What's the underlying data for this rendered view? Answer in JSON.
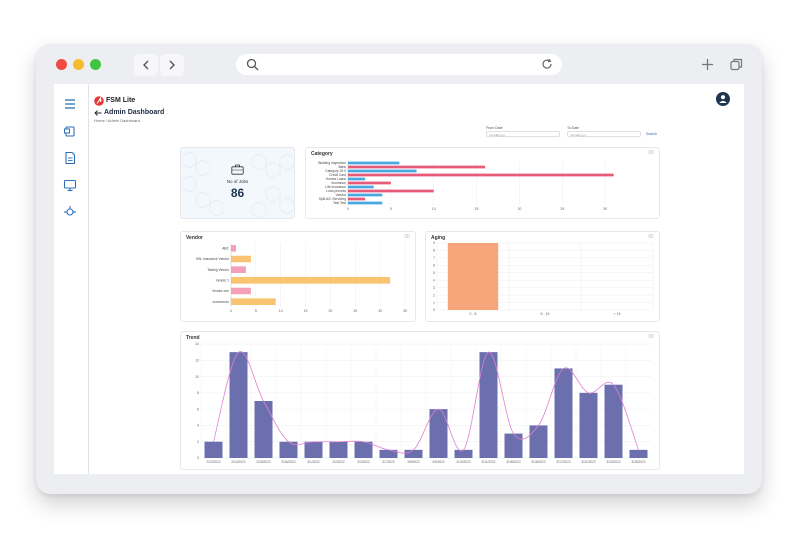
{
  "app": {
    "logo_text": "FSM Lite",
    "page_title": "Admin Dashboard",
    "breadcrumb_home": "Home",
    "breadcrumb_sep": " / ",
    "breadcrumb_current": "Admin Dashboard"
  },
  "filters": {
    "from_label": "From Date",
    "from_placeholder": "mm/dd/yyyy",
    "to_label": "To Date",
    "to_placeholder": "mm/dd/yyyy",
    "search_label": "Search"
  },
  "jobs": {
    "label": "No of Jobs",
    "value": "86"
  },
  "colors": {
    "blue": "#4aa8e0",
    "pink": "#e85a7a",
    "orange": "#f7a57a",
    "yellow": "#f8c471",
    "lightpink": "#f4a0b8",
    "purple": "#6b6fae",
    "trendline": "#e080d0",
    "accent": "#e53935",
    "sidebar_icon": "#2d6fb8"
  },
  "category_chart": {
    "title": "Category",
    "chart_data": {
      "type": "bar",
      "orientation": "horizontal",
      "categories": [
        "Building Inspection",
        "Bank",
        "Category 20.0",
        "Credit Card",
        "Homes Loans",
        "Insurance",
        "Life Insurance",
        "Loan process",
        "Vendor",
        "Split A/C Servicing",
        "Test Test"
      ],
      "series": [
        {
          "values": [
            6,
            0,
            8,
            0,
            2,
            0,
            3,
            0,
            4,
            0,
            4
          ]
        },
        {
          "values": [
            0,
            16,
            0,
            31,
            0,
            5,
            0,
            10,
            0,
            2,
            0
          ]
        }
      ],
      "xticks": [
        "0",
        "5",
        "10",
        "15",
        "20",
        "25",
        "30"
      ],
      "xlim": [
        0,
        35
      ]
    }
  },
  "vendor_chart": {
    "title": "Vendor",
    "chart_data": {
      "type": "bar",
      "orientation": "horizontal",
      "categories": [
        "ABC",
        "SW- Insurance Vendor",
        "Testing Vendor",
        "Vendor 1",
        "Vendor one",
        "xxxxxxxxxx"
      ],
      "values": [
        1,
        4,
        3,
        32,
        4,
        9
      ],
      "xticks": [
        "0",
        "5",
        "10",
        "15",
        "20",
        "25",
        "30",
        "35"
      ],
      "xlim": [
        0,
        35
      ]
    }
  },
  "aging_chart": {
    "title": "Aging",
    "chart_data": {
      "type": "bar",
      "categories": [
        "0 - 5",
        "6 - 15",
        "> 15"
      ],
      "values": [
        9,
        0,
        0
      ],
      "yticks": [
        "0",
        "1",
        "2",
        "3",
        "4",
        "5",
        "6",
        "7",
        "8",
        "9"
      ],
      "ylim": [
        0,
        9
      ]
    }
  },
  "trend_chart": {
    "title": "Trend",
    "chart_data": {
      "type": "bar",
      "categories": [
        "2/22/2022",
        "2/24/2022",
        "2/25/2022",
        "2/26/2022",
        "3/1/2022",
        "3/2/2022",
        "3/3/2022",
        "3/7/2022",
        "3/8/2022",
        "3/9/2022",
        "3/10/2022",
        "3/11/2022",
        "3/18/2022",
        "3/16/2022",
        "3/17/2022",
        "3/21/2022",
        "3/23/2022",
        "3/28/2022"
      ],
      "values": [
        2,
        13,
        7,
        2,
        2,
        2,
        2,
        1,
        1,
        6,
        1,
        13,
        3,
        4,
        11,
        8,
        9,
        1
      ],
      "yticks": [
        "0",
        "2",
        "4",
        "6",
        "8",
        "10",
        "12",
        "14"
      ],
      "ylim": [
        0,
        14
      ]
    }
  }
}
